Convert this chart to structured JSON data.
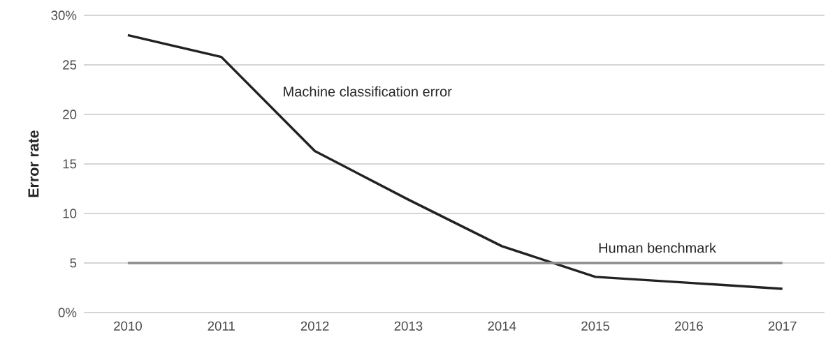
{
  "chart_data": {
    "type": "line",
    "ylabel": "Error rate",
    "categories": [
      "2010",
      "2011",
      "2012",
      "2013",
      "2014",
      "2015",
      "2016",
      "2017"
    ],
    "series": [
      {
        "name": "Machine classification error",
        "color": "#222222",
        "values": [
          28,
          25.8,
          16.3,
          11.4,
          6.7,
          3.6,
          3.0,
          2.4
        ]
      },
      {
        "name": "Human benchmark",
        "color": "#8c8c8c",
        "values": [
          5,
          5,
          5,
          5,
          5,
          5,
          5,
          5
        ]
      }
    ],
    "ylim": [
      0,
      30
    ],
    "yticks": [
      {
        "value": 0,
        "label": "0%"
      },
      5,
      10,
      15,
      20,
      25,
      {
        "value": 30,
        "label": "30%"
      }
    ],
    "grid": "y"
  }
}
